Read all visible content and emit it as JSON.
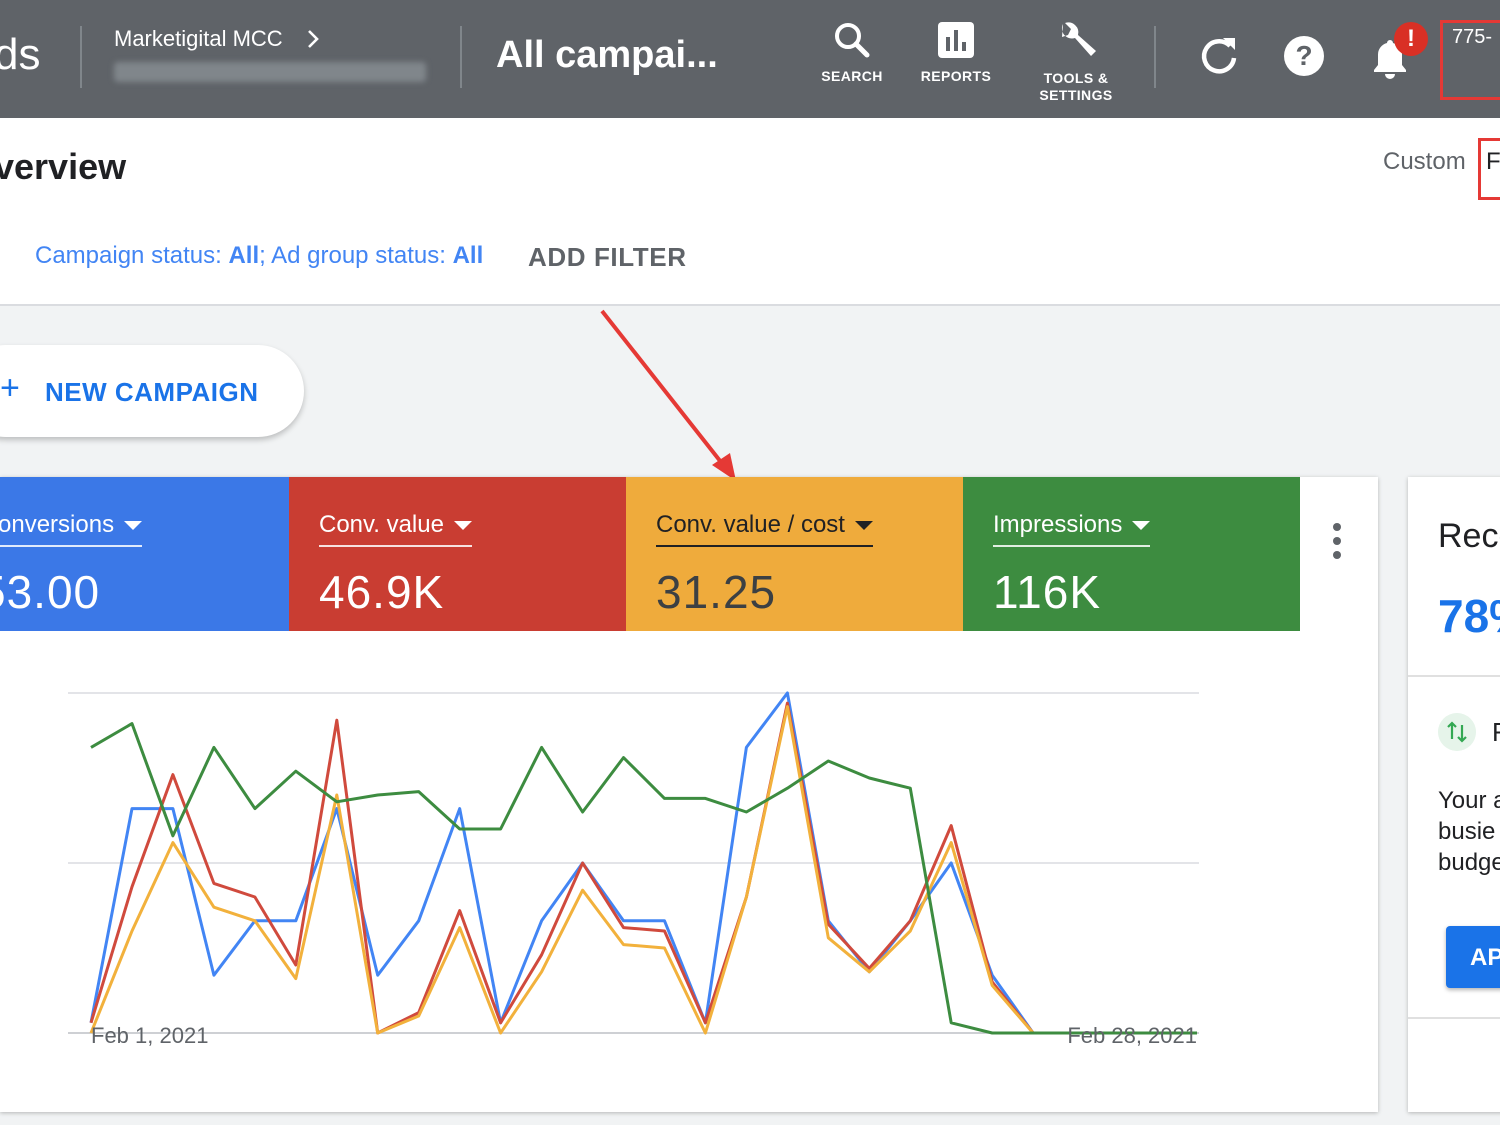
{
  "header": {
    "logo_partial": "ds",
    "account_name": "Marketigital MCC",
    "page_title": "All campai...",
    "tools": [
      {
        "icon": "search-icon",
        "label": "SEARCH"
      },
      {
        "icon": "reports-icon",
        "label": "REPORTS"
      },
      {
        "icon": "wrench-icon",
        "label": "TOOLS &",
        "label2": "SETTINGS"
      }
    ],
    "notification_badge": "!",
    "customer_id_partial": "775-"
  },
  "overview": {
    "title": "verview",
    "date_range_label": "Custom",
    "date_range_partial": "F"
  },
  "filters": {
    "campaign_status_label": "Campaign status: ",
    "campaign_status_value": "All",
    "sep": "; ",
    "adgroup_status_label": "Ad group status: ",
    "adgroup_status_value": "All",
    "add_filter": "ADD FILTER"
  },
  "new_campaign": {
    "plus": "+",
    "label": "NEW CAMPAIGN"
  },
  "metrics": [
    {
      "label": "onversions",
      "value": "53.00",
      "color": "#3b78e7"
    },
    {
      "label": "Conv. value",
      "value": "46.9K",
      "color": "#c93d32"
    },
    {
      "label": "Conv. value / cost",
      "value": "31.25",
      "color": "#efab3c"
    },
    {
      "label": "Impressions",
      "value": "116K",
      "color": "#3d8c40"
    }
  ],
  "chart_data": {
    "type": "line",
    "x_start_label": "Feb 1, 2021",
    "x_end_label": "Feb 28, 2021",
    "x": [
      1,
      2,
      3,
      4,
      5,
      6,
      7,
      8,
      9,
      10,
      11,
      12,
      13,
      14,
      15,
      16,
      17,
      18,
      19,
      20,
      21,
      22,
      23,
      24,
      25,
      26,
      27,
      28
    ],
    "ylim": [
      0,
      100
    ],
    "grid": true,
    "series": [
      {
        "color": "#4285f4",
        "values": [
          3,
          66,
          66,
          17,
          33,
          33,
          66,
          17,
          33,
          66,
          3,
          33,
          50,
          33,
          33,
          3,
          84,
          100,
          33,
          18,
          33,
          50,
          17,
          0,
          0,
          0,
          0,
          0
        ]
      },
      {
        "color": "#d04a3d",
        "values": [
          3,
          43,
          76,
          44,
          40,
          20,
          92,
          0,
          6,
          36,
          3,
          23,
          50,
          31,
          30,
          3,
          40,
          97,
          32,
          19,
          33,
          61,
          15,
          0,
          0,
          0,
          0,
          0
        ]
      },
      {
        "color": "#f2b13c",
        "values": [
          0,
          30,
          56,
          37,
          33,
          16,
          70,
          0,
          5,
          31,
          0,
          18,
          42,
          26,
          25,
          0,
          40,
          96,
          28,
          18,
          30,
          56,
          14,
          0,
          0,
          0,
          0,
          0
        ]
      },
      {
        "color": "#3d8c40",
        "values": [
          84,
          91,
          58,
          84,
          66,
          77,
          68,
          70,
          71,
          60,
          60,
          84,
          65,
          81,
          69,
          69,
          65,
          72,
          80,
          75,
          72,
          3,
          0,
          0,
          0,
          0,
          0,
          0
        ]
      }
    ]
  },
  "side_panel": {
    "title": "Reco",
    "percent": "78%",
    "item_letter": "F",
    "body_lines": [
      "Your a",
      "busie",
      "budge"
    ],
    "button": "AP"
  }
}
